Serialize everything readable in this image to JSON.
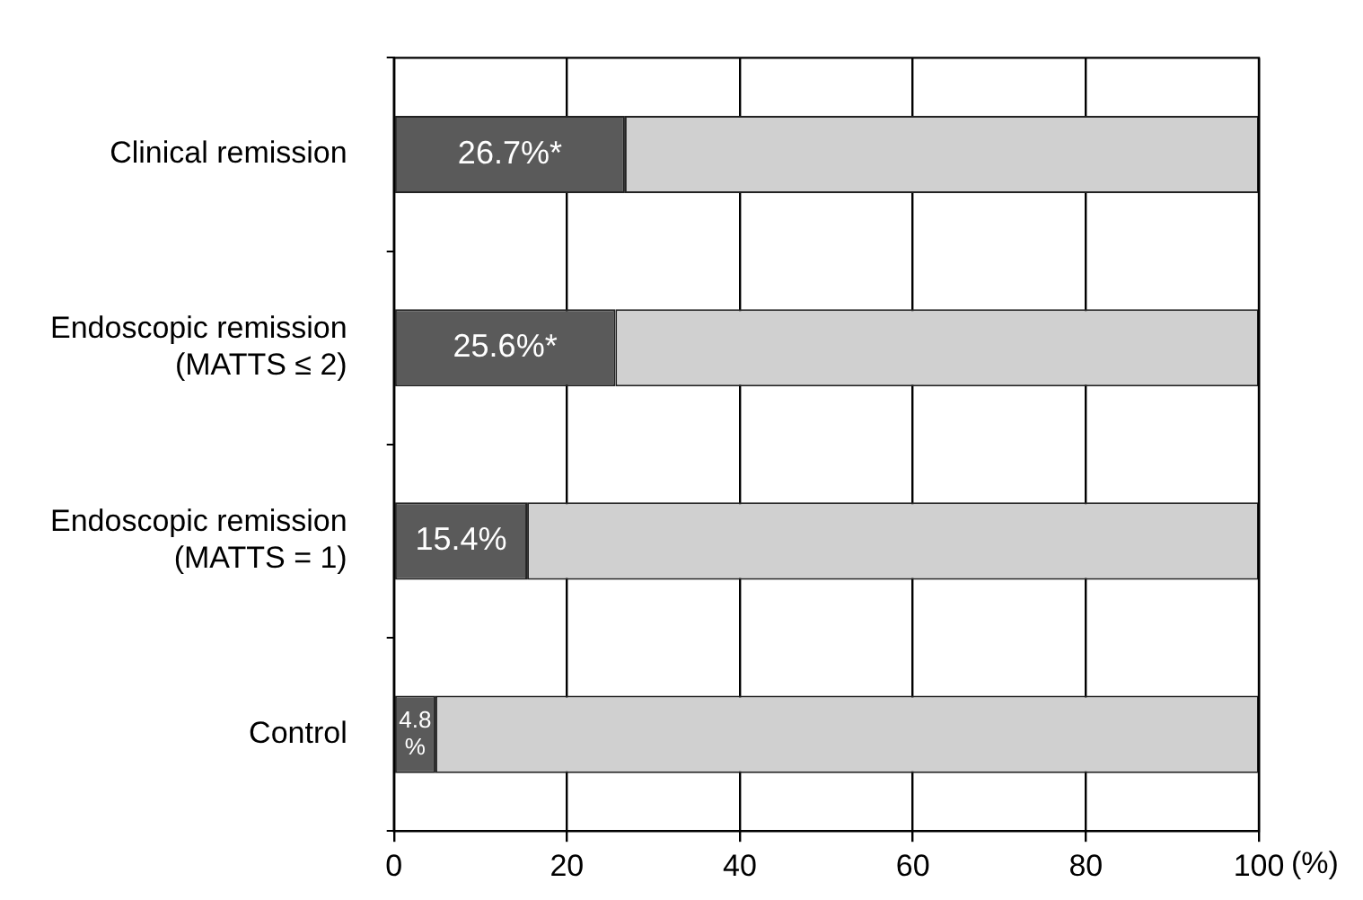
{
  "chart_data": {
    "type": "bar",
    "orientation": "horizontal",
    "stacked": true,
    "categories": [
      "Clinical remission",
      "Endoscopic remission\n(MATTS ≤ 2)",
      "Endoscopic remission\n(MATTS = 1)",
      "Control"
    ],
    "series": [
      {
        "color": "#5a5a5a",
        "values": [
          26.7,
          25.6,
          15.4,
          4.8
        ],
        "value_labels": [
          "26.7%*",
          "25.6%*",
          "15.4%",
          "4.8\n%"
        ]
      },
      {
        "color": "#d0d0d0",
        "values": [
          73.3,
          74.4,
          84.6,
          95.2
        ]
      }
    ],
    "xlim": [
      0,
      100
    ],
    "xticks": [
      0,
      20,
      40,
      60,
      80,
      100
    ],
    "xlabel": "(%)",
    "grid": "x",
    "legend": false
  }
}
